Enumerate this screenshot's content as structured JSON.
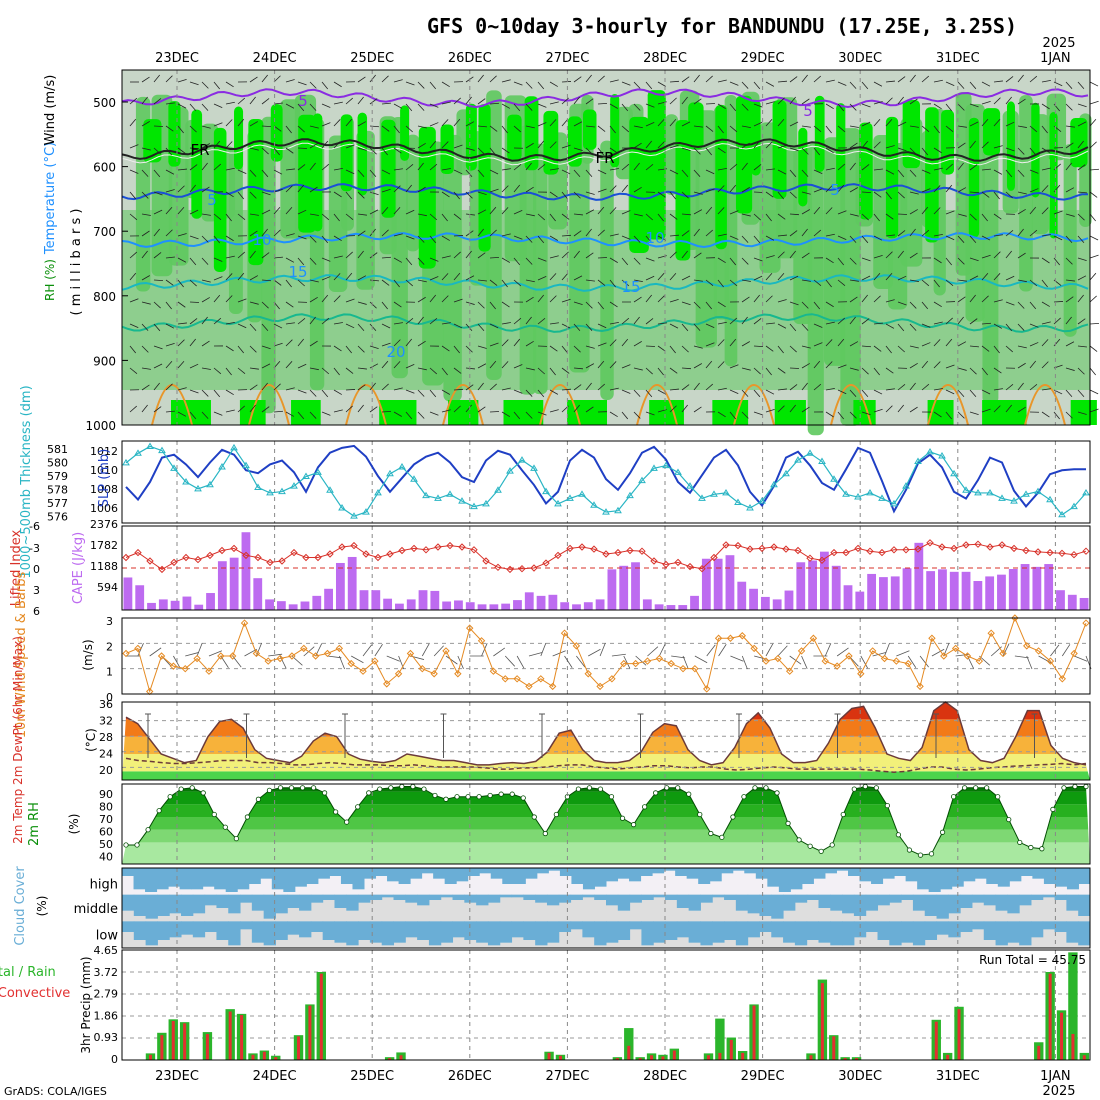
{
  "title": "GFS 0~10day 3-hourly for BANDUNDU (17.25E, 3.25S)",
  "credit": "GrADS: COLA/IGES",
  "colors": {
    "rh_light": "#c8d6c8",
    "rh_mid": "#5ec95e",
    "rh_high": "#00e600",
    "temp_contour_cool": "#1e90ff",
    "wind_contour": "#8a2be2",
    "cape": "#bd6bf0",
    "lifted": "#d8322a",
    "slp": "#1f3fc4",
    "thickness": "#29b5c4",
    "wind10": "#e58a22",
    "temp_warm": "#e85a0c",
    "rh2m": "#0a8f0a",
    "cloud": "#6aaed6",
    "precip_total": "#2bb52b",
    "precip_conv": "#e23030"
  },
  "dates": {
    "top": [
      "23DEC",
      "24DEC",
      "25DEC",
      "26DEC",
      "27DEC",
      "28DEC",
      "29DEC",
      "30DEC",
      "31DEC",
      "1JAN"
    ],
    "bottom": [
      "23DEC",
      "24DEC",
      "25DEC",
      "26DEC",
      "27DEC",
      "28DEC",
      "29DEC",
      "30DEC",
      "31DEC",
      "1JAN"
    ],
    "year": "2025"
  },
  "panels": {
    "upper": {
      "ylabel_parts": [
        "RH (%)",
        "Temperature (°C)",
        "Wind (m/s)"
      ],
      "ylabel_unit": "( m i l l i b a r s )",
      "pressure_ticks": [
        "500",
        "600",
        "700",
        "800",
        "900",
        "1000"
      ],
      "contour_labels": [
        {
          "text": "5",
          "series": "wind"
        },
        {
          "text": "5",
          "series": "wind"
        },
        {
          "text": "FR",
          "series": "freezing"
        },
        {
          "text": "FR",
          "series": "freezing"
        },
        {
          "text": "5",
          "series": "temp"
        },
        {
          "text": "5",
          "series": "temp"
        },
        {
          "text": "10",
          "series": "temp"
        },
        {
          "text": "10",
          "series": "temp"
        },
        {
          "text": "15",
          "series": "temp"
        },
        {
          "text": "15",
          "series": "temp"
        },
        {
          "text": "20",
          "series": "temp"
        }
      ]
    },
    "slp": {
      "label_left": "1000~500mb Thickness (dm)",
      "label_right": "SLP (mb)",
      "ticks_left": [
        "581",
        "580",
        "579",
        "578",
        "577",
        "576"
      ],
      "ticks_right": [
        "1012",
        "1010",
        "1008",
        "1006"
      ]
    },
    "cape": {
      "label_left": "Lifted Index",
      "label_right": "CAPE (J/kg)",
      "ticks_left": [
        "-3",
        "0",
        "3",
        "6"
      ],
      "ticks_right": [
        "2376",
        "1782",
        "1188",
        "594"
      ],
      "ticks_left_top": "-6"
    },
    "wind10": {
      "label": "10m Wind Speed & Barbs",
      "unit": "(m/s)",
      "ticks": [
        "3",
        "2",
        "1",
        "0"
      ]
    },
    "temp2m": {
      "label": "2m Temp 2m DewPt (6hr Min/Max)",
      "unit": "(°C)",
      "ticks": [
        "36",
        "32",
        "28",
        "24",
        "20"
      ]
    },
    "rh2m": {
      "label": "2m RH",
      "unit": "(%)",
      "ticks": [
        "90",
        "80",
        "70",
        "60",
        "50",
        "40"
      ]
    },
    "cloud": {
      "label": "Cloud Cover",
      "unit": "(%)",
      "levels": [
        "high",
        "middle",
        "low"
      ]
    },
    "precip": {
      "label_total": "Total / Rain",
      "label_conv": "Convective",
      "ylabel": "3hr Precip (mm)",
      "ticks": [
        "4.65",
        "3.72",
        "2.79",
        "1.86",
        "0.93",
        "0"
      ],
      "run_total": "Run Total = 45.75"
    }
  },
  "chart_data": [
    {
      "type": "line",
      "name": "SLP",
      "ylabel": "SLP (mb)",
      "ylim": [
        1004.8,
        1013.2
      ],
      "x": "3-hourly steps from 22DEC 12Z, 81 steps",
      "values": [
        1008.5,
        1007.2,
        1009.0,
        1011.5,
        1011.8,
        1010.8,
        1009.5,
        1011.0,
        1012.3,
        1011.8,
        1010.2,
        1009.9,
        1010.8,
        1011.2,
        1010.0,
        1008.0,
        1010.5,
        1012.0,
        1012.5,
        1012.7,
        1011.6,
        1009.6,
        1008.0,
        1009.4,
        1010.8,
        1011.6,
        1012.0,
        1011.0,
        1009.5,
        1009.0,
        1011.2,
        1012.2,
        1011.8,
        1010.2,
        1008.7,
        1006.8,
        1008.0,
        1011.2,
        1012.3,
        1011.5,
        1009.3,
        1008.2,
        1009.9,
        1012.0,
        1012.6,
        1011.3,
        1009.0,
        1007.9,
        1009.7,
        1011.5,
        1012.3,
        1010.7,
        1008.0,
        1006.6,
        1008.6,
        1011.5,
        1012.1,
        1010.7,
        1008.9,
        1008.2,
        1010.3,
        1012.5,
        1012.0,
        1009.1,
        1006.0,
        1008.2,
        1010.9,
        1011.8,
        1010.5,
        1008.0,
        1007.3,
        1009.2,
        1011.5,
        1011.0,
        1008.1,
        1006.5,
        1007.9,
        1009.8,
        1010.2,
        1010.3,
        1010.3
      ]
    },
    {
      "type": "line",
      "name": "Thickness",
      "ylabel": "1000~500mb Thickness (dm)",
      "ylim": [
        575.8,
        581.8
      ],
      "values": [
        580.2,
        580.9,
        581.4,
        581.1,
        579.8,
        578.8,
        578.3,
        578.6,
        579.9,
        581.3,
        580.0,
        578.4,
        578.0,
        578.1,
        578.5,
        579.2,
        579.5,
        578.2,
        576.9,
        576.3,
        576.6,
        578.0,
        579.4,
        579.9,
        579.0,
        577.8,
        577.6,
        577.9,
        577.4,
        577.0,
        577.2,
        578.2,
        579.6,
        580.4,
        579.8,
        578.1,
        577.2,
        577.6,
        577.9,
        577.1,
        576.6,
        576.7,
        577.8,
        578.9,
        579.8,
        580.0,
        579.5,
        578.5,
        577.6,
        577.9,
        578.0,
        577.3,
        576.9,
        577.4,
        578.6,
        579.4,
        580.4,
        580.9,
        580.3,
        579.0,
        577.9,
        577.7,
        578.0,
        577.6,
        577.2,
        578.5,
        580.3,
        581.0,
        580.7,
        579.4,
        578.2,
        578.0,
        578.0,
        577.6,
        577.4,
        577.9,
        578.1,
        577.5,
        576.4,
        577.0,
        578.0
      ]
    },
    {
      "type": "bar",
      "name": "CAPE",
      "ylabel": "CAPE (J/kg)",
      "ylim": [
        0,
        2376
      ],
      "values": [
        920,
        700,
        200,
        300,
        260,
        380,
        150,
        480,
        1380,
        1480,
        2200,
        900,
        300,
        250,
        160,
        240,
        400,
        600,
        1330,
        1500,
        560,
        560,
        320,
        180,
        300,
        560,
        540,
        240,
        270,
        220,
        160,
        160,
        180,
        280,
        500,
        400,
        430,
        220,
        160,
        220,
        300,
        1150,
        1250,
        1350,
        300,
        160,
        140,
        140,
        400,
        1450,
        1450,
        1550,
        800,
        600,
        370,
        300,
        550,
        1350,
        1400,
        1650,
        1250,
        700,
        520,
        1020,
        930,
        950,
        1180,
        1900,
        1100,
        1150,
        1080,
        1080,
        820,
        950,
        1000,
        1160,
        1300,
        1220,
        1300,
        560,
        430,
        340
      ]
    },
    {
      "type": "line",
      "name": "Lifted Index",
      "ylabel": "Lifted Index",
      "ylim": [
        6,
        -6
      ],
      "values": [
        -1.5,
        -2.2,
        -1.0,
        0.2,
        -0.8,
        -1.5,
        -1.2,
        -1.8,
        -2.5,
        -2.8,
        -1.8,
        -1.5,
        -0.8,
        -1.0,
        -2.2,
        -1.5,
        -1.5,
        -2.0,
        -3.0,
        -3.2,
        -2.0,
        -1.5,
        -2.0,
        -2.5,
        -2.8,
        -2.6,
        -3.0,
        -3.2,
        -3.0,
        -2.6,
        -1.0,
        -0.1,
        0.2,
        0.1,
        0.0,
        -0.7,
        -1.8,
        -2.8,
        -3.0,
        -2.7,
        -2.0,
        -2.2,
        -2.5,
        -2.4,
        -1.0,
        -0.5,
        -0.8,
        -0.2,
        0.1,
        -1.5,
        -3.3,
        -3.2,
        -2.7,
        -2.8,
        -3.0,
        -2.7,
        -2.5,
        -1.4,
        -1.1,
        -2.2,
        -2.2,
        -2.8,
        -2.4,
        -2.2,
        -2.6,
        -2.6,
        -2.7,
        -3.6,
        -3.0,
        -2.8,
        -3.3,
        -3.4,
        -3.0,
        -3.3,
        -2.8,
        -2.5,
        -2.3,
        -2.2,
        -2.1,
        -1.9,
        -2.4
      ]
    },
    {
      "type": "line",
      "name": "10m Wind Speed",
      "ylabel": "(m/s)",
      "ylim": [
        0,
        3
      ],
      "values": [
        1.6,
        1.8,
        0.1,
        1.5,
        1.1,
        1.0,
        1.4,
        0.9,
        1.5,
        1.5,
        2.8,
        1.6,
        1.3,
        1.4,
        1.5,
        1.8,
        1.5,
        1.6,
        1.8,
        1.2,
        0.9,
        1.3,
        0.4,
        0.8,
        1.6,
        1.0,
        0.8,
        1.7,
        0.8,
        2.6,
        2.1,
        0.9,
        0.6,
        0.6,
        0.3,
        0.6,
        0.3,
        2.4,
        1.9,
        0.8,
        0.3,
        0.6,
        1.2,
        1.2,
        1.3,
        1.4,
        1.2,
        1.0,
        1.0,
        0.2,
        2.2,
        2.2,
        2.3,
        1.8,
        1.3,
        1.4,
        0.9,
        1.7,
        2.2,
        1.3,
        1.1,
        1.5,
        0.8,
        1.7,
        1.4,
        1.3,
        1.2,
        0.3,
        2.2,
        1.5,
        1.8,
        1.5,
        1.3,
        2.4,
        1.6,
        3.0,
        1.9,
        1.7,
        1.3,
        0.6,
        1.6,
        2.8
      ]
    },
    {
      "type": "area",
      "name": "2m Temp",
      "ylabel": "(°C)",
      "ylim": [
        18,
        36
      ],
      "values": [
        32.5,
        31.0,
        27.5,
        24.0,
        23.0,
        22.0,
        22.5,
        28.0,
        31.5,
        32.0,
        30.0,
        25.0,
        23.0,
        22.5,
        22.0,
        23.5,
        27.0,
        28.8,
        28.0,
        24.0,
        22.8,
        22.3,
        22.0,
        22.5,
        24.0,
        23.5,
        23.0,
        22.5,
        22.5,
        22.0,
        21.5,
        21.5,
        21.8,
        22.0,
        21.8,
        22.3,
        24.5,
        28.8,
        29.5,
        25.0,
        22.5,
        22.0,
        22.0,
        22.5,
        24.5,
        29.0,
        31.0,
        30.5,
        25.0,
        22.5,
        21.5,
        22.0,
        25.5,
        31.0,
        33.5,
        30.0,
        24.0,
        22.0,
        22.0,
        22.5,
        26.5,
        32.0,
        34.5,
        35.0,
        30.0,
        24.0,
        23.0,
        22.5,
        25.5,
        34.0,
        36.0,
        34.0,
        25.0,
        22.5,
        22.0,
        23.0,
        28.0,
        34.0,
        34.0,
        26.0,
        23.0,
        22.0,
        21.5
      ]
    },
    {
      "type": "line",
      "name": "2m DewPt",
      "ylabel": "(°C)",
      "ylim": [
        18,
        36
      ],
      "values": [
        23.0,
        22.5,
        22.3,
        22.0,
        21.8,
        21.8,
        22.0,
        22.2,
        22.5,
        22.5,
        22.5,
        22.0,
        22.0,
        21.8,
        21.5,
        21.5,
        21.8,
        22.0,
        21.8,
        21.5,
        21.5,
        21.5,
        21.3,
        21.3,
        21.5,
        21.2,
        21.0,
        21.0,
        21.0,
        21.0,
        20.8,
        20.5,
        20.5,
        20.8,
        20.8,
        21.0,
        21.3,
        21.5,
        21.5,
        21.0,
        20.8,
        20.5,
        20.8,
        21.0,
        21.3,
        21.3,
        21.0,
        20.8,
        21.0,
        21.0,
        20.5,
        20.3,
        20.5,
        20.8,
        21.0,
        20.8,
        20.5,
        20.5,
        20.5,
        20.5,
        20.5,
        20.5,
        20.3,
        20.0,
        19.8,
        20.0,
        20.5,
        21.0,
        21.0,
        20.5,
        20.3,
        20.5,
        20.8,
        21.0,
        21.2,
        21.3,
        21.5,
        21.6,
        21.8,
        21.5,
        21.8
      ]
    },
    {
      "type": "area",
      "name": "2m RH",
      "ylabel": "(%)",
      "ylim": [
        33,
        96
      ],
      "values": [
        48,
        48,
        60,
        75,
        86,
        92,
        93,
        89,
        72,
        62,
        53,
        70,
        84,
        91,
        93,
        93,
        93,
        93,
        89,
        74,
        66,
        78,
        89,
        92,
        93,
        94,
        94,
        92,
        87,
        84,
        86,
        86,
        86,
        87,
        88,
        88,
        85,
        70,
        57,
        72,
        86,
        92,
        93,
        92,
        86,
        69,
        64,
        78,
        89,
        93,
        93,
        88,
        72,
        57,
        54,
        70,
        86,
        93,
        93,
        89,
        65,
        52,
        47,
        43,
        48,
        72,
        92,
        94,
        93,
        79,
        56,
        44,
        40,
        41,
        58,
        86,
        93,
        93,
        93,
        86,
        68,
        50,
        46,
        45,
        76,
        93,
        94,
        94
      ]
    },
    {
      "type": "bar",
      "name": "3hr Precip Total",
      "ylabel": "3hr Precip (mm)",
      "ylim": [
        0,
        4.65
      ],
      "values": [
        0,
        0,
        0.28,
        1.15,
        1.72,
        1.6,
        0,
        1.18,
        0,
        2.15,
        1.95,
        0.28,
        0.4,
        0.18,
        0,
        1.05,
        2.35,
        3.72,
        0,
        0,
        0,
        0,
        0,
        0.12,
        0.32,
        0,
        0,
        0,
        0,
        0,
        0,
        0,
        0,
        0,
        0,
        0,
        0,
        0.35,
        0.22,
        0,
        0,
        0,
        0,
        0.12,
        1.35,
        0.12,
        0.28,
        0.22,
        0.48,
        0,
        0,
        0.28,
        1.75,
        0.95,
        0.38,
        2.35,
        0,
        0,
        0,
        0,
        0.28,
        3.4,
        1.05,
        0.12,
        0.12,
        0,
        0,
        0,
        0,
        0,
        0,
        1.7,
        0.3,
        2.25,
        0,
        0,
        0,
        0,
        0,
        0,
        0.75,
        3.72,
        2.1,
        4.55,
        0.3
      ]
    },
    {
      "type": "bar",
      "name": "3hr Precip Convective",
      "ylabel": "3hr Precip (mm)",
      "ylim": [
        0,
        4.65
      ],
      "values": [
        0,
        0,
        0.22,
        1.05,
        1.65,
        1.55,
        0,
        1.1,
        0,
        2.05,
        1.9,
        0.22,
        0.35,
        0.12,
        0,
        1.0,
        2.3,
        3.65,
        0,
        0,
        0,
        0,
        0,
        0.08,
        0.2,
        0,
        0,
        0,
        0,
        0,
        0,
        0,
        0,
        0,
        0,
        0,
        0,
        0.3,
        0.18,
        0,
        0,
        0,
        0,
        0.08,
        0.6,
        0.08,
        0.2,
        0.15,
        0.4,
        0,
        0,
        0.2,
        0.3,
        0.85,
        0.3,
        2.3,
        0,
        0,
        0,
        0,
        0.2,
        3.25,
        1.0,
        0.08,
        0.08,
        0,
        0,
        0,
        0,
        0,
        0,
        1.62,
        0.22,
        2.15,
        0,
        0,
        0,
        0,
        0,
        0,
        0.6,
        3.65,
        2.0,
        1.1,
        0.2
      ]
    },
    {
      "type": "heatmap",
      "name": "Cloud Cover",
      "levels": [
        "high",
        "middle",
        "low"
      ],
      "high": [
        30,
        80,
        90,
        80,
        70,
        80,
        80,
        70,
        80,
        90,
        80,
        60,
        40,
        80,
        90,
        70,
        60,
        40,
        30,
        60,
        80,
        40,
        30,
        50,
        60,
        40,
        20,
        40,
        60,
        50,
        30,
        20,
        40,
        60,
        60,
        40,
        20,
        10,
        30,
        60,
        80,
        70,
        50,
        40,
        50,
        30,
        20,
        10,
        30,
        40,
        60,
        50,
        20,
        10,
        20,
        40,
        70,
        90,
        80,
        60,
        40,
        20,
        10,
        30,
        50,
        60,
        40,
        30,
        50,
        80,
        90,
        80,
        70,
        50,
        40,
        60,
        70,
        50,
        30,
        40,
        60,
        70,
        80,
        60
      ],
      "middle": [
        60,
        80,
        90,
        80,
        70,
        80,
        70,
        40,
        50,
        70,
        30,
        60,
        90,
        70,
        50,
        60,
        30,
        20,
        50,
        60,
        30,
        20,
        10,
        20,
        30,
        40,
        20,
        10,
        20,
        30,
        40,
        30,
        10,
        10,
        20,
        30,
        40,
        30,
        20,
        10,
        20,
        40,
        60,
        30,
        20,
        10,
        20,
        50,
        60,
        30,
        10,
        20,
        60,
        70,
        80,
        90,
        60,
        30,
        20,
        50,
        60,
        70,
        80,
        60,
        40,
        30,
        20,
        60,
        80,
        90,
        70,
        50,
        30,
        40,
        60,
        70,
        40,
        20,
        10,
        20,
        60,
        80
      ],
      "low": [
        40,
        70,
        90,
        70,
        60,
        50,
        60,
        40,
        70,
        90,
        30,
        80,
        90,
        70,
        50,
        60,
        40,
        70,
        80,
        90,
        70,
        80,
        90,
        80,
        60,
        70,
        90,
        80,
        60,
        70,
        80,
        90,
        80,
        60,
        70,
        90,
        80,
        40,
        30,
        60,
        90,
        80,
        70,
        30,
        90,
        80,
        70,
        60,
        80,
        90,
        80,
        70,
        90,
        60,
        40,
        60,
        80,
        90,
        70,
        80,
        90,
        90,
        60,
        40,
        70,
        90,
        80,
        90,
        70,
        50,
        60,
        40,
        30,
        70,
        90,
        80,
        90,
        60,
        30,
        40,
        80,
        90
      ]
    }
  ]
}
